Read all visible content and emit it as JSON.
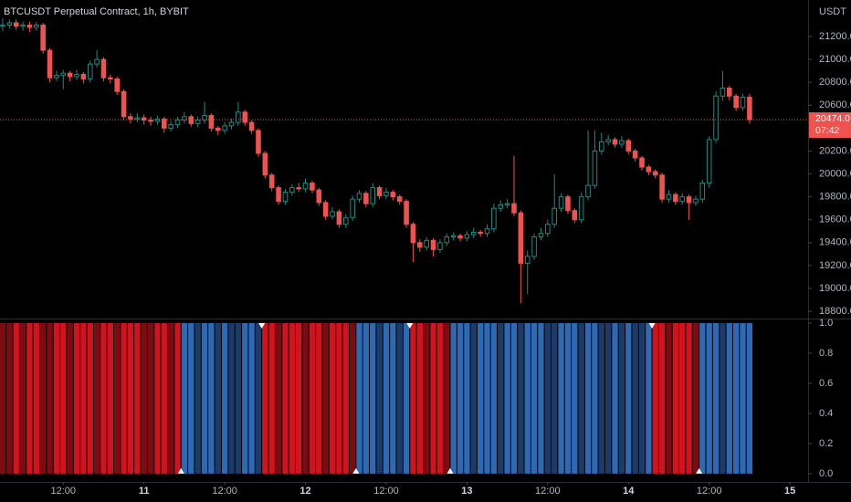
{
  "chart_data": [
    {
      "type": "candlestick",
      "title": "BTCUSDT Perpetual Contract, 1h, BYBIT",
      "ylabel": "USDT",
      "up_color": "#1f8a80",
      "down_color": "#ef5350",
      "xlim": [
        -0.4,
        119.7
      ],
      "ylim": [
        18745,
        21519
      ],
      "xticks": [
        {
          "value": 9,
          "label": "12:00"
        },
        {
          "value": 21,
          "label": "11"
        },
        {
          "value": 33,
          "label": "12:00"
        },
        {
          "value": 45,
          "label": "12"
        },
        {
          "value": 57,
          "label": "12:00"
        },
        {
          "value": 69,
          "label": "13"
        },
        {
          "value": 81,
          "label": "12:00"
        },
        {
          "value": 93,
          "label": "14"
        },
        {
          "value": 105,
          "label": "12:00"
        },
        {
          "value": 117,
          "label": "15"
        }
      ],
      "yticks": [
        {
          "value": 18800,
          "label": "18800.0"
        },
        {
          "value": 19000,
          "label": "19000.0"
        },
        {
          "value": 19200,
          "label": "19200.0"
        },
        {
          "value": 19400,
          "label": "19400.0"
        },
        {
          "value": 19600,
          "label": "19600.0"
        },
        {
          "value": 19800,
          "label": "19800.0"
        },
        {
          "value": 20000,
          "label": "20000.0"
        },
        {
          "value": 20200,
          "label": "20200.0"
        },
        {
          "value": 20600,
          "label": "20600.0"
        },
        {
          "value": 20800,
          "label": "20800.0"
        },
        {
          "value": 21000,
          "label": "21000.0"
        },
        {
          "value": 21200,
          "label": "21200.0"
        }
      ],
      "last_price": {
        "value": 20474,
        "label": "20474.0"
      },
      "countdown": "07:42",
      "open": [
        21290,
        21300,
        21320,
        21290,
        21300,
        21280,
        21300,
        21080,
        20840,
        20860,
        20880,
        20850,
        20870,
        20830,
        20960,
        21000,
        20840,
        20830,
        20720,
        20500,
        20480,
        20490,
        20470,
        20460,
        20480,
        20400,
        20430,
        20470,
        20500,
        20440,
        20470,
        20510,
        20400,
        20380,
        20420,
        20450,
        20540,
        20450,
        20380,
        20180,
        19990,
        19880,
        19760,
        19840,
        19880,
        19870,
        19920,
        19860,
        19750,
        19630,
        19670,
        19560,
        19620,
        19780,
        19830,
        19740,
        19880,
        19810,
        19840,
        19800,
        19760,
        19560,
        19400,
        19360,
        19420,
        19340,
        19400,
        19450,
        19460,
        19440,
        19470,
        19490,
        19480,
        19520,
        19700,
        19730,
        19740,
        19660,
        19220,
        19280,
        19450,
        19480,
        19560,
        19700,
        19800,
        19680,
        19600,
        19800,
        19900,
        20200,
        20280,
        20300,
        20260,
        20290,
        20200,
        20140,
        20060,
        20020,
        19990,
        19780,
        19820,
        19760,
        19800,
        19750,
        19780,
        19920,
        20300,
        20680,
        20750,
        20680,
        20580,
        20670
      ],
      "high": [
        21360,
        21350,
        21350,
        21330,
        21330,
        21330,
        21320,
        21100,
        20900,
        20910,
        20900,
        20910,
        20890,
        20990,
        21080,
        21020,
        20870,
        20850,
        20740,
        20530,
        20530,
        20520,
        20500,
        20510,
        20500,
        20460,
        20500,
        20540,
        20520,
        20500,
        20630,
        20530,
        20420,
        20450,
        20480,
        20630,
        20560,
        20470,
        20400,
        20200,
        20010,
        19900,
        19870,
        19910,
        19920,
        19960,
        19940,
        19880,
        19770,
        19710,
        19690,
        19650,
        19810,
        19860,
        19850,
        19920,
        19900,
        19880,
        19860,
        19820,
        19780,
        19580,
        19430,
        19450,
        19440,
        19430,
        19480,
        19490,
        19480,
        19500,
        19530,
        19510,
        19560,
        19740,
        19770,
        19780,
        20160,
        19680,
        19330,
        19480,
        19530,
        19600,
        20000,
        19830,
        19820,
        19700,
        19840,
        20380,
        20380,
        20360,
        20340,
        20320,
        20330,
        20310,
        20220,
        20160,
        20080,
        20040,
        20010,
        19860,
        19840,
        19830,
        19820,
        19810,
        19950,
        20330,
        20720,
        20900,
        20770,
        20700,
        20700,
        20700
      ],
      "low": [
        21250,
        21270,
        21260,
        21250,
        21240,
        21250,
        21050,
        20800,
        20810,
        20740,
        20810,
        20820,
        20790,
        20800,
        20930,
        20810,
        20790,
        20690,
        20470,
        20440,
        20450,
        20430,
        20420,
        20430,
        20360,
        20370,
        20400,
        20440,
        20410,
        20410,
        20440,
        20370,
        20340,
        20350,
        20390,
        20420,
        20420,
        20350,
        20150,
        19960,
        19850,
        19730,
        19730,
        19810,
        19840,
        19840,
        19830,
        19720,
        19600,
        19600,
        19530,
        19530,
        19590,
        19750,
        19710,
        19710,
        19780,
        19780,
        19770,
        19730,
        19530,
        19230,
        19320,
        19330,
        19280,
        19310,
        19370,
        19420,
        19410,
        19410,
        19440,
        19450,
        19450,
        19490,
        19670,
        19700,
        19630,
        18870,
        18950,
        19250,
        19420,
        19450,
        19530,
        19670,
        19650,
        19570,
        19570,
        19770,
        19870,
        20170,
        20250,
        20230,
        20230,
        20170,
        20110,
        20030,
        19990,
        19960,
        19750,
        19750,
        19730,
        19730,
        19600,
        19720,
        19750,
        19880,
        20270,
        20640,
        20640,
        20550,
        20550,
        20440
      ],
      "close": [
        21300,
        21320,
        21290,
        21300,
        21280,
        21300,
        21080,
        20840,
        20860,
        20880,
        20850,
        20870,
        20830,
        20960,
        21000,
        20840,
        20830,
        20720,
        20500,
        20480,
        20490,
        20470,
        20460,
        20480,
        20400,
        20430,
        20470,
        20500,
        20440,
        20470,
        20510,
        20400,
        20380,
        20420,
        20450,
        20540,
        20450,
        20380,
        20180,
        19990,
        19880,
        19760,
        19840,
        19880,
        19870,
        19920,
        19860,
        19750,
        19630,
        19670,
        19560,
        19620,
        19780,
        19830,
        19740,
        19880,
        19810,
        19840,
        19800,
        19760,
        19560,
        19400,
        19360,
        19420,
        19340,
        19400,
        19450,
        19460,
        19440,
        19470,
        19490,
        19480,
        19520,
        19700,
        19730,
        19740,
        19660,
        19220,
        19280,
        19450,
        19480,
        19560,
        19700,
        19800,
        19680,
        19600,
        19800,
        19900,
        20200,
        20280,
        20300,
        20260,
        20290,
        20200,
        20140,
        20060,
        20020,
        19990,
        19780,
        19820,
        19760,
        19800,
        19750,
        19780,
        19920,
        20300,
        20680,
        20750,
        20680,
        20580,
        20670,
        20474
      ]
    },
    {
      "type": "bar",
      "xlim": [
        -0.4,
        119.7
      ],
      "ylim": [
        -0.055,
        1.024
      ],
      "yticks": [
        {
          "value": 0,
          "label": "0.0"
        },
        {
          "value": 0.2,
          "label": "0.2"
        },
        {
          "value": 0.4,
          "label": "0.4"
        },
        {
          "value": 0.6,
          "label": "0.6"
        },
        {
          "value": 0.8,
          "label": "0.8"
        },
        {
          "value": 1,
          "label": "1.0"
        }
      ],
      "values": [
        1,
        1,
        1,
        1,
        1,
        1,
        1,
        1,
        1,
        1,
        1,
        1,
        1,
        1,
        1,
        1,
        1,
        1,
        1,
        1,
        1,
        1,
        1,
        1,
        1,
        1,
        1,
        1,
        1,
        1,
        1,
        1,
        1,
        1,
        1,
        1,
        1,
        1,
        1,
        1,
        1,
        1,
        1,
        1,
        1,
        1,
        1,
        1,
        1,
        1,
        1,
        1,
        1,
        1,
        1,
        1,
        1,
        1,
        1,
        1,
        1,
        1,
        1,
        1,
        1,
        1,
        1,
        1,
        1,
        1,
        1,
        1,
        1,
        1,
        1,
        1,
        1,
        1,
        1,
        1,
        1,
        1,
        1,
        1,
        1,
        1,
        1,
        1,
        1,
        1,
        1,
        1,
        1,
        1,
        1,
        1,
        1,
        1,
        1,
        1,
        1,
        1,
        1,
        1,
        1,
        1,
        1,
        1,
        1,
        1,
        1,
        1
      ],
      "colors": [
        "#7d0c12",
        "#7d0c12",
        "#d1131f",
        "#7d0c12",
        "#d1131f",
        "#d1131f",
        "#7d0c12",
        "#7d0c12",
        "#d1131f",
        "#d1131f",
        "#7d0c12",
        "#d1131f",
        "#d1131f",
        "#d1131f",
        "#7d0c12",
        "#d1131f",
        "#d1131f",
        "#7d0c12",
        "#d1131f",
        "#d1131f",
        "#d1131f",
        "#7d0c12",
        "#7d0c12",
        "#d1131f",
        "#d1131f",
        "#7d0c12",
        "#d1131f",
        "#2e69b3",
        "#2e69b3",
        "#1d3b66",
        "#2e69b3",
        "#2e69b3",
        "#1d3b66",
        "#2e69b3",
        "#1d3b66",
        "#1d3b66",
        "#2e69b3",
        "#2e69b3",
        "#1d3b66",
        "#d1131f",
        "#d1131f",
        "#7d0c12",
        "#d1131f",
        "#d1131f",
        "#d1131f",
        "#7d0c12",
        "#d1131f",
        "#d1131f",
        "#7d0c12",
        "#d1131f",
        "#d1131f",
        "#d1131f",
        "#7d0c12",
        "#2e69b3",
        "#2e69b3",
        "#2e69b3",
        "#1d3b66",
        "#2e69b3",
        "#2e69b3",
        "#1d3b66",
        "#2e69b3",
        "#d1131f",
        "#d1131f",
        "#7d0c12",
        "#d1131f",
        "#d1131f",
        "#7d0c12",
        "#2e69b3",
        "#2e69b3",
        "#2e69b3",
        "#1d3b66",
        "#2e69b3",
        "#2e69b3",
        "#2e69b3",
        "#1d3b66",
        "#2e69b3",
        "#2e69b3",
        "#1d3b66",
        "#2e69b3",
        "#2e69b3",
        "#2e69b3",
        "#1d3b66",
        "#1d3b66",
        "#2e69b3",
        "#2e69b3",
        "#2e69b3",
        "#1d3b66",
        "#2e69b3",
        "#2e69b3",
        "#1d3b66",
        "#1d3b66",
        "#2e69b3",
        "#1d3b66",
        "#2e69b3",
        "#1d3b66",
        "#1d3b66",
        "#2e69b3",
        "#d1131f",
        "#d1131f",
        "#7d0c12",
        "#d1131f",
        "#d1131f",
        "#d1131f",
        "#7d0c12",
        "#2e69b3",
        "#2e69b3",
        "#2e69b3",
        "#1d3b66",
        "#2e69b3",
        "#2e69b3",
        "#2e69b3",
        "#2e69b3"
      ],
      "sell_signals": [
        39,
        61,
        97
      ],
      "buy_signals": [
        27,
        53,
        67,
        104
      ]
    }
  ]
}
